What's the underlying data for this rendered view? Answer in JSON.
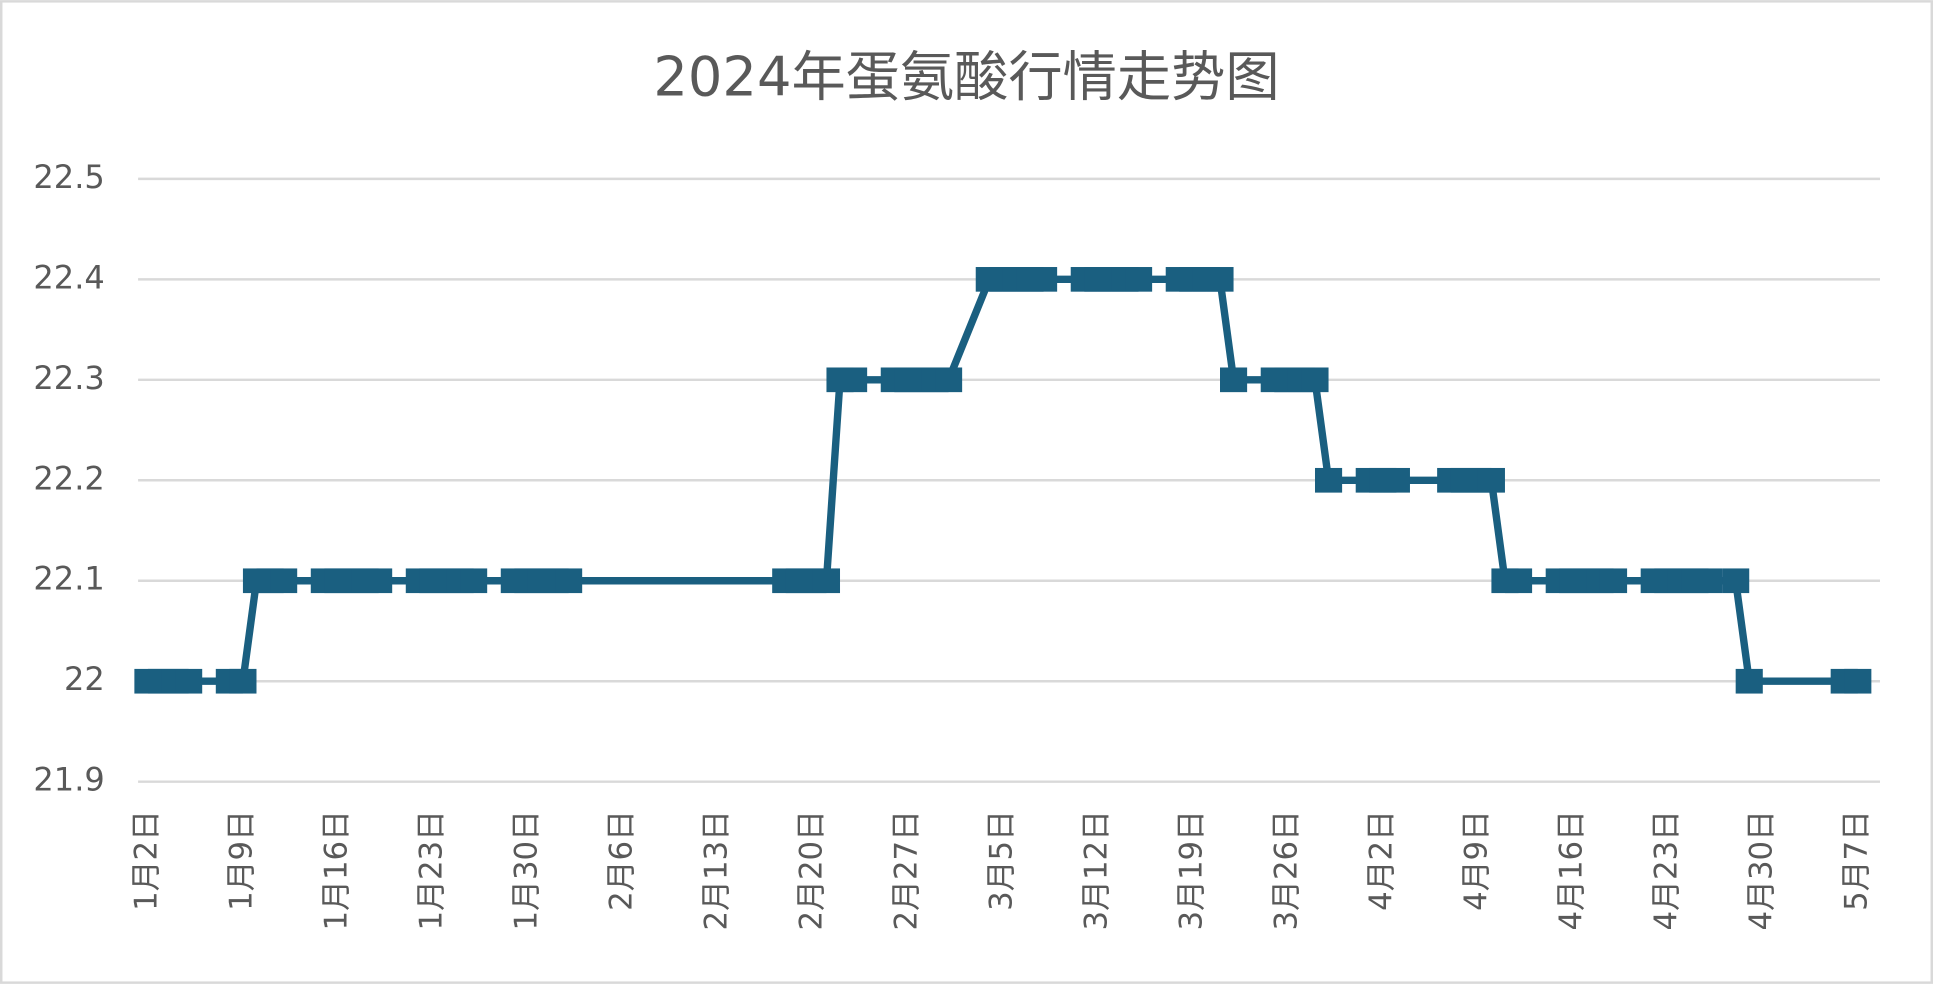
{
  "chart_data": {
    "type": "line",
    "title": "2024年蛋氨酸行情走势图",
    "x": [
      "1月2日",
      "1月3日",
      "1月4日",
      "1月5日",
      "1月8日",
      "1月9日",
      "1月10日",
      "1月11日",
      "1月12日",
      "1月15日",
      "1月16日",
      "1月17日",
      "1月18日",
      "1月19日",
      "1月22日",
      "1月23日",
      "1月24日",
      "1月25日",
      "1月26日",
      "1月29日",
      "1月30日",
      "1月31日",
      "2月1日",
      "2月2日",
      "2月18日",
      "2月19日",
      "2月20日",
      "2月21日",
      "2月22日",
      "2月23日",
      "2月26日",
      "2月27日",
      "2月28日",
      "2月29日",
      "3月1日",
      "3月4日",
      "3月5日",
      "3月6日",
      "3月7日",
      "3月8日",
      "3月11日",
      "3月12日",
      "3月13日",
      "3月14日",
      "3月15日",
      "3月18日",
      "3月19日",
      "3月20日",
      "3月21日",
      "3月22日",
      "3月25日",
      "3月26日",
      "3月27日",
      "3月28日",
      "3月29日",
      "4月1日",
      "4月2日",
      "4月3日",
      "4月7日",
      "4月8日",
      "4月9日",
      "4月10日",
      "4月11日",
      "4月12日",
      "4月15日",
      "4月16日",
      "4月17日",
      "4月18日",
      "4月19日",
      "4月22日",
      "4月23日",
      "4月24日",
      "4月25日",
      "4月26日",
      "4月28日",
      "4月29日",
      "5月6日",
      "5月7日"
    ],
    "series": [
      {
        "color": "#1a5f80",
        "values": [
          22,
          22,
          22,
          22,
          22,
          22,
          22.1,
          22.1,
          22.1,
          22.1,
          22.1,
          22.1,
          22.1,
          22.1,
          22.1,
          22.1,
          22.1,
          22.1,
          22.1,
          22.1,
          22.1,
          22.1,
          22.1,
          22.1,
          22.1,
          22.1,
          22.1,
          22.1,
          22.3,
          22.3,
          22.3,
          22.3,
          22.3,
          22.3,
          22.3,
          22.4,
          22.4,
          22.4,
          22.4,
          22.4,
          22.4,
          22.4,
          22.4,
          22.4,
          22.4,
          22.4,
          22.4,
          22.4,
          22.4,
          22.3,
          22.3,
          22.3,
          22.3,
          22.3,
          22.2,
          22.2,
          22.2,
          22.2,
          22.2,
          22.2,
          22.2,
          22.2,
          22.1,
          22.1,
          22.1,
          22.1,
          22.1,
          22.1,
          22.1,
          22.1,
          22.1,
          22.1,
          22.1,
          22.1,
          22.1,
          22,
          22,
          22
        ]
      }
    ],
    "xticks": [
      "1月2日",
      "1月9日",
      "1月16日",
      "1月23日",
      "1月30日",
      "2月6日",
      "2月13日",
      "2月20日",
      "2月27日",
      "3月5日",
      "3月12日",
      "3月19日",
      "3月26日",
      "4月2日",
      "4月9日",
      "4月16日",
      "4月23日",
      "4月30日",
      "5月7日"
    ],
    "ylim": [
      21.9,
      22.5
    ],
    "yticks": [
      21.9,
      22,
      22.1,
      22.2,
      22.3,
      22.4,
      22.5
    ],
    "grid": true
  }
}
